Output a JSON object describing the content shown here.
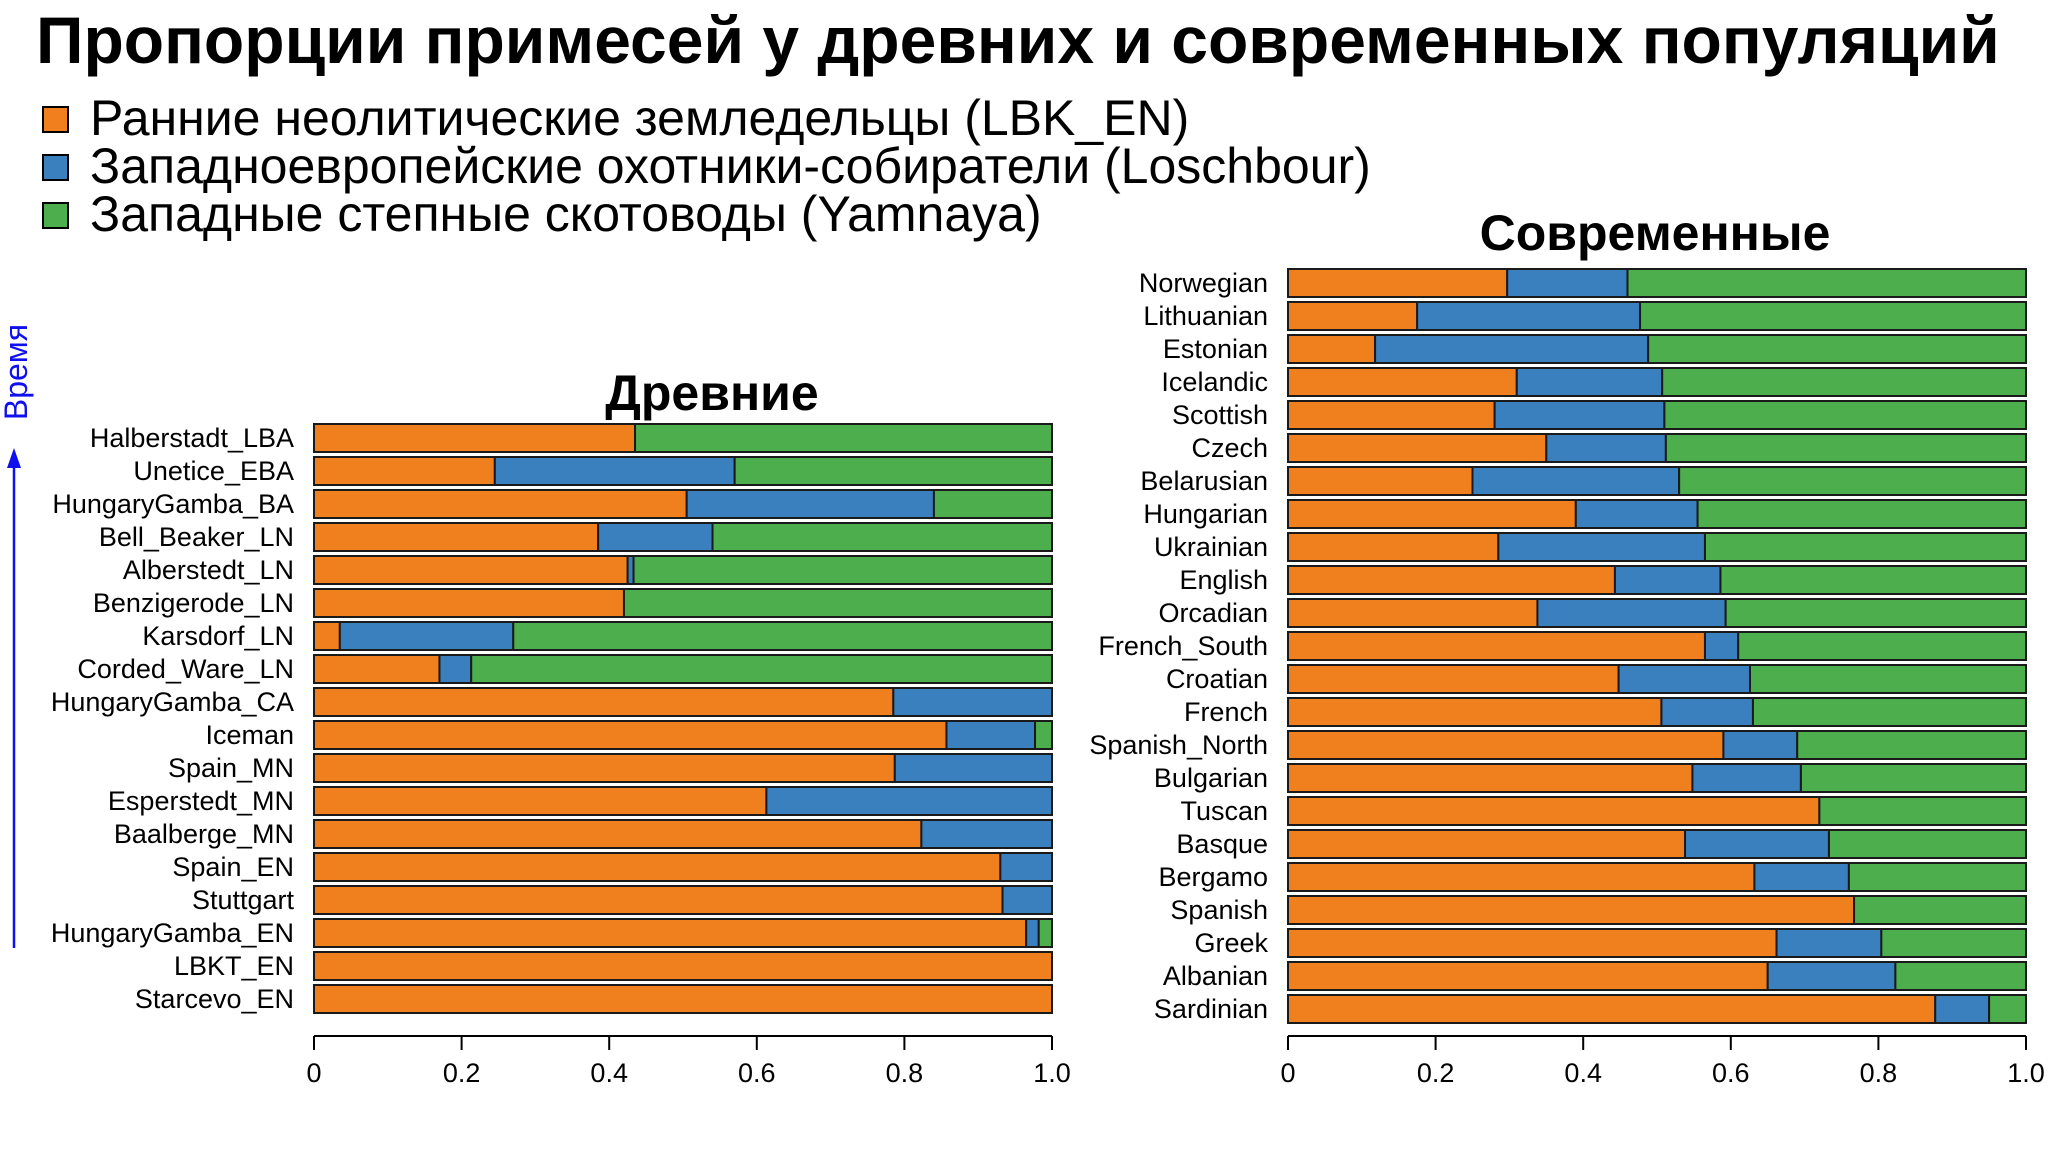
{
  "title": "Пропорции примесей у древних и современных популяций",
  "colors": {
    "farmers": "#f07f1d",
    "hunters": "#3a80be",
    "steppe": "#4cae4c"
  },
  "legend": [
    {
      "label": "Ранние неолитические земледельцы (LBK_EN)",
      "color": "#f07f1d"
    },
    {
      "label": "Западноевропейские охотники-собиратели (Loschbour)",
      "color": "#3a80be"
    },
    {
      "label": "Западные степные скотоводы (Yamnaya)",
      "color": "#4cae4c"
    }
  ],
  "time_axis_label": "Время",
  "chart_data": [
    {
      "type": "bar",
      "orientation": "horizontal",
      "stacked": true,
      "title": "Древние",
      "xlim": [
        0,
        1.0
      ],
      "xticks": [
        "0",
        "0.2",
        "0.4",
        "0.6",
        "0.8",
        "1.0"
      ],
      "categories": [
        "Halberstadt_LBA",
        "Unetice_EBA",
        "HungaryGamba_BA",
        "Bell_Beaker_LN",
        "Alberstedt_LN",
        "Benzigerode_LN",
        "Karsdorf_LN",
        "Corded_Ware_LN",
        "HungaryGamba_CA",
        "Iceman",
        "Spain_MN",
        "Esperstedt_MN",
        "Baalberge_MN",
        "Spain_EN",
        "Stuttgart",
        "HungaryGamba_EN",
        "LBKT_EN",
        "Starcevo_EN"
      ],
      "series": [
        {
          "name": "Ранние неолитические земледельцы (LBK_EN)",
          "color": "#f07f1d",
          "values": [
            0.435,
            0.245,
            0.505,
            0.385,
            0.425,
            0.42,
            0.035,
            0.17,
            0.785,
            0.857,
            0.787,
            0.613,
            0.823,
            0.93,
            0.933,
            0.965,
            1.0,
            1.0
          ]
        },
        {
          "name": "Западноевропейские охотники-собиратели (Loschbour)",
          "color": "#3a80be",
          "values": [
            0.0,
            0.325,
            0.335,
            0.155,
            0.008,
            0.0,
            0.235,
            0.043,
            0.215,
            0.12,
            0.213,
            0.387,
            0.177,
            0.07,
            0.067,
            0.017,
            0.0,
            0.0
          ]
        },
        {
          "name": "Западные степные скотоводы (Yamnaya)",
          "color": "#4cae4c",
          "values": [
            0.565,
            0.43,
            0.16,
            0.46,
            0.567,
            0.58,
            0.73,
            0.787,
            0.0,
            0.023,
            0.0,
            0.0,
            0.0,
            0.0,
            0.0,
            0.018,
            0.0,
            0.0
          ]
        }
      ]
    },
    {
      "type": "bar",
      "orientation": "horizontal",
      "stacked": true,
      "title": "Современные",
      "xlim": [
        0,
        1.0
      ],
      "xticks": [
        "0",
        "0.2",
        "0.4",
        "0.6",
        "0.8",
        "1.0"
      ],
      "categories": [
        "Norwegian",
        "Lithuanian",
        "Estonian",
        "Icelandic",
        "Scottish",
        "Czech",
        "Belarusian",
        "Hungarian",
        "Ukrainian",
        "English",
        "Orcadian",
        "French_South",
        "Croatian",
        "French",
        "Spanish_North",
        "Bulgarian",
        "Tuscan",
        "Basque",
        "Bergamo",
        "Spanish",
        "Greek",
        "Albanian",
        "Sardinian"
      ],
      "series": [
        {
          "name": "Ранние неолитические земледельцы (LBK_EN)",
          "color": "#f07f1d",
          "values": [
            0.297,
            0.175,
            0.118,
            0.31,
            0.28,
            0.35,
            0.25,
            0.39,
            0.285,
            0.443,
            0.338,
            0.565,
            0.448,
            0.506,
            0.59,
            0.548,
            0.72,
            0.538,
            0.632,
            0.767,
            0.662,
            0.65,
            0.877
          ]
        },
        {
          "name": "Западноевропейские охотники-собиратели (Loschbour)",
          "color": "#3a80be",
          "values": [
            0.163,
            0.302,
            0.37,
            0.197,
            0.23,
            0.162,
            0.28,
            0.165,
            0.28,
            0.143,
            0.255,
            0.045,
            0.178,
            0.124,
            0.1,
            0.147,
            0.0,
            0.195,
            0.128,
            0.0,
            0.142,
            0.173,
            0.073
          ]
        },
        {
          "name": "Западные степные скотоводы (Yamnaya)",
          "color": "#4cae4c",
          "values": [
            0.54,
            0.523,
            0.512,
            0.493,
            0.49,
            0.488,
            0.47,
            0.445,
            0.435,
            0.414,
            0.407,
            0.39,
            0.374,
            0.37,
            0.31,
            0.305,
            0.28,
            0.267,
            0.24,
            0.233,
            0.196,
            0.177,
            0.05
          ]
        }
      ]
    }
  ]
}
